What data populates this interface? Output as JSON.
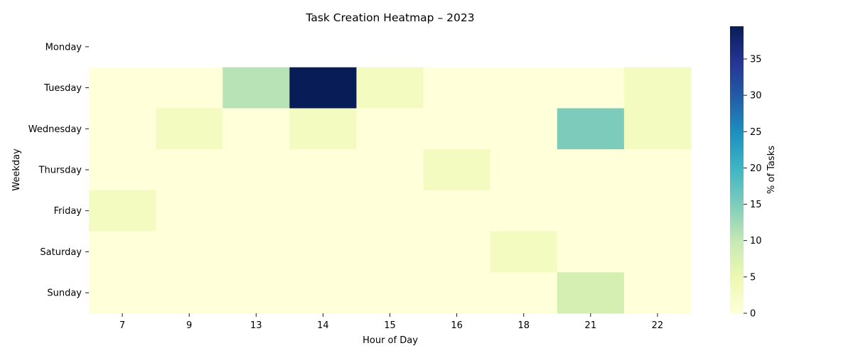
{
  "chart_data": {
    "type": "heatmap",
    "title": "Task Creation Heatmap – 2023",
    "xlabel": "Hour of Day",
    "ylabel": "Weekday",
    "x_categories": [
      "7",
      "9",
      "13",
      "14",
      "15",
      "16",
      "18",
      "21",
      "22"
    ],
    "y_categories": [
      "Monday",
      "Tuesday",
      "Wednesday",
      "Thursday",
      "Friday",
      "Saturday",
      "Sunday"
    ],
    "values": [
      [
        null,
        null,
        null,
        null,
        null,
        null,
        null,
        null,
        null
      ],
      [
        0,
        0,
        11,
        39.5,
        3,
        0,
        0,
        0,
        3
      ],
      [
        0,
        3,
        0,
        3,
        0,
        0,
        0,
        15,
        3
      ],
      [
        0,
        0,
        0,
        0,
        0,
        3,
        0,
        0,
        0
      ],
      [
        3,
        0,
        0,
        0,
        0,
        0,
        0,
        0,
        0
      ],
      [
        0,
        0,
        0,
        0,
        0,
        0,
        3,
        0,
        0
      ],
      [
        0,
        0,
        0,
        0,
        0,
        0,
        0,
        8,
        0
      ]
    ],
    "colorbar": {
      "label": "% of Tasks",
      "ticks": [
        0,
        5,
        10,
        15,
        20,
        25,
        30,
        35
      ],
      "range": [
        0,
        39.5
      ],
      "colormap": [
        "#ffffd9",
        "#edf8b1",
        "#c7e9b4",
        "#7fcdbb",
        "#41b6c4",
        "#1d91c0",
        "#225ea8",
        "#253494",
        "#081d58"
      ]
    }
  }
}
